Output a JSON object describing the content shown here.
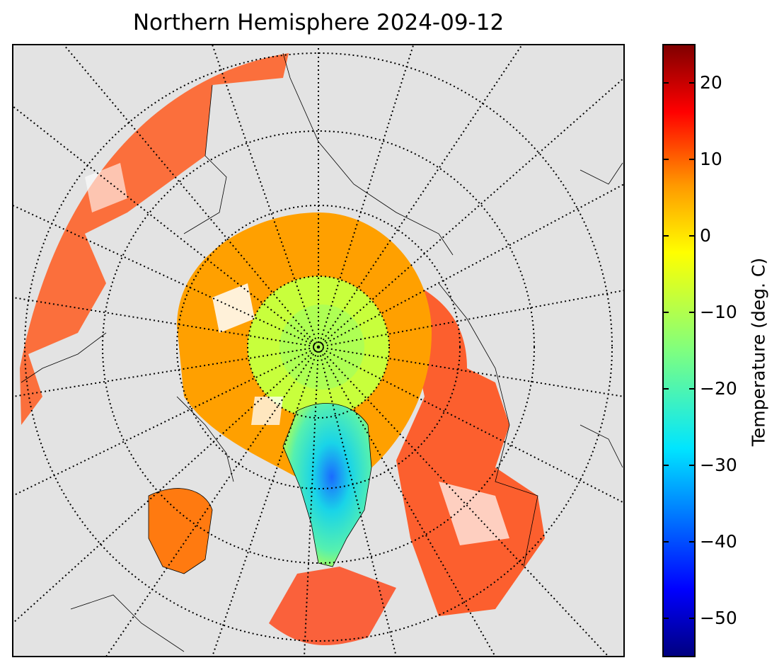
{
  "title": "Northern Hemisphere 2024-09-12",
  "colorbar": {
    "label": "Temperature (deg. C)",
    "min": -55,
    "max": 25,
    "ticks": [
      20,
      10,
      0,
      -10,
      -20,
      -30,
      -40,
      -50
    ],
    "tick_labels": [
      "20",
      "10",
      "0",
      "−10",
      "−20",
      "−30",
      "−40",
      "−50"
    ],
    "colormap": [
      "#00007f",
      "#0000ff",
      "#007fff",
      "#00ffff",
      "#7fff7f",
      "#ffff00",
      "#ff7f00",
      "#ff0000",
      "#7f0000"
    ]
  },
  "map": {
    "projection": "north-polar-stereographic",
    "background_color": "#e3e3e3",
    "graticule": "dotted"
  }
}
